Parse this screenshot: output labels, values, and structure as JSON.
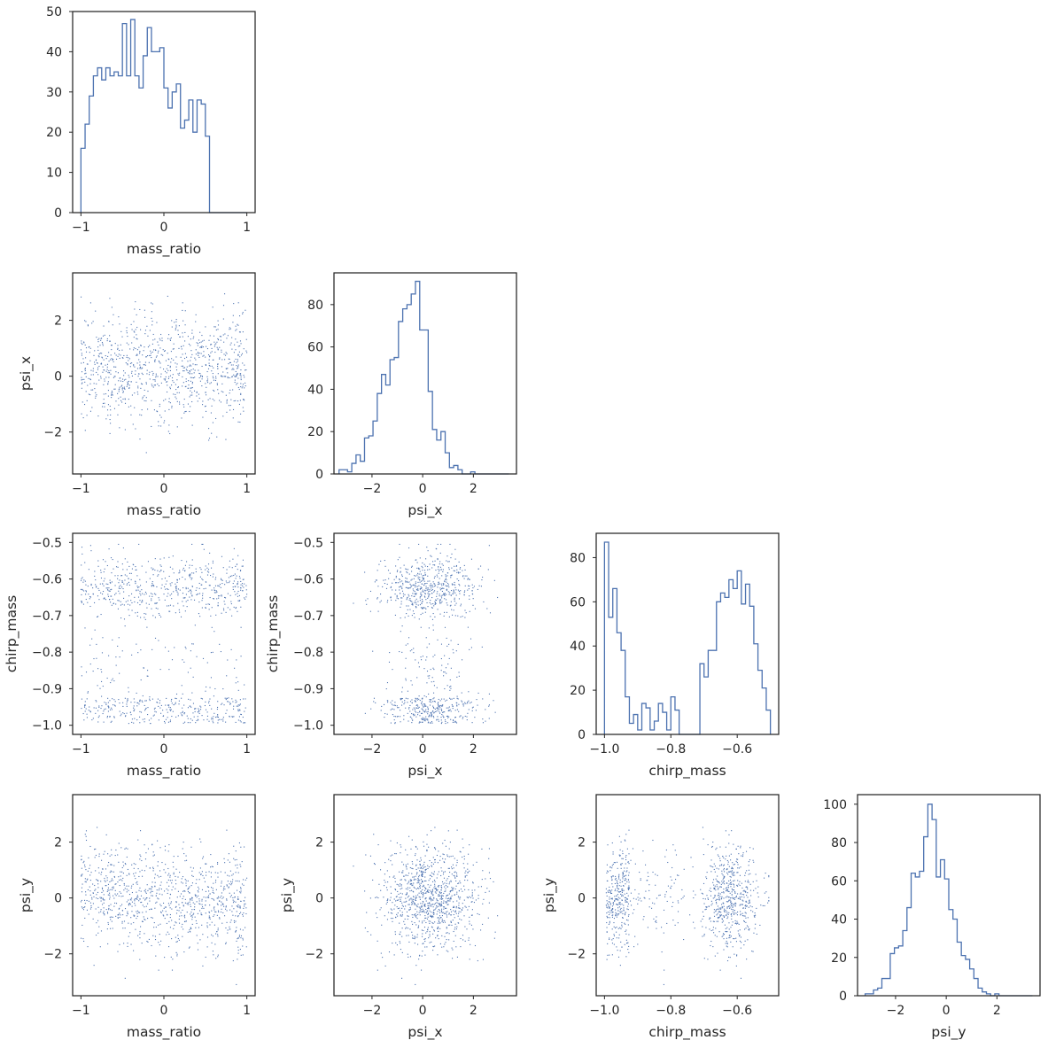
{
  "chart_data": {
    "type": "pairplot",
    "variables": [
      "mass_ratio",
      "psi_x",
      "chirp_mass",
      "psi_y"
    ],
    "color": "#4C72B0",
    "axes": {
      "mass_ratio": {
        "lim": [
          -1.1,
          1.1
        ],
        "ticks": [
          -1,
          0,
          1
        ],
        "tick_labels": [
          "−1",
          "0",
          "1"
        ]
      },
      "psi_x": {
        "lim": [
          -3.5,
          3.7
        ],
        "ticks": [
          -2,
          0,
          2
        ],
        "tick_labels": [
          "−2",
          "0",
          "2"
        ]
      },
      "chirp_mass": {
        "lim": [
          -1.025,
          -0.475
        ],
        "ticks": [
          -1.0,
          -0.9,
          -0.8,
          -0.7,
          -0.6,
          -0.5
        ],
        "tick_labels": [
          "−1.0",
          "−0.9",
          "−0.8",
          "−0.7",
          "−0.6",
          "−0.5"
        ],
        "ticks_x": [
          -1.0,
          -0.8,
          -0.6
        ],
        "tick_labels_x": [
          "−1.0",
          "−0.8",
          "−0.6"
        ]
      },
      "psi_y": {
        "lim": [
          -3.5,
          3.7
        ],
        "ticks": [
          -2,
          0,
          2
        ],
        "tick_labels": [
          "−2",
          "0",
          "2"
        ]
      }
    },
    "histograms": [
      {
        "variable": "mass_ratio",
        "bin_edges_range": [
          -1.0,
          1.0
        ],
        "bins": 40,
        "counts": [
          16,
          22,
          29,
          34,
          36,
          33,
          36,
          34,
          35,
          34,
          47,
          34,
          48,
          34,
          31,
          39,
          46,
          40,
          40,
          41,
          31,
          26,
          30,
          32,
          21,
          23,
          28,
          20,
          28,
          27,
          19,
          0,
          0,
          0,
          0,
          0,
          0,
          0,
          0,
          0
        ],
        "ylim": [
          0,
          50
        ],
        "yticks": [
          0,
          10,
          20,
          30,
          40,
          50
        ]
      },
      {
        "variable": "psi_x",
        "bin_edges_range": [
          -3.3,
          3.4
        ],
        "bins": 40,
        "counts": [
          2,
          2,
          1,
          5,
          9,
          6,
          17,
          18,
          25,
          38,
          47,
          42,
          54,
          55,
          72,
          78,
          80,
          85,
          91,
          68,
          68,
          39,
          21,
          16,
          20,
          10,
          3,
          4,
          2,
          0,
          0,
          1,
          0,
          0,
          0,
          0,
          0,
          0,
          0,
          0
        ],
        "ylim": [
          0,
          95
        ],
        "yticks": [
          0,
          20,
          40,
          60,
          80
        ]
      },
      {
        "variable": "chirp_mass",
        "bin_edges_range": [
          -1.0,
          -0.5
        ],
        "bins": 40,
        "counts": [
          87,
          53,
          66,
          46,
          38,
          17,
          5,
          9,
          2,
          14,
          12,
          2,
          6,
          14,
          10,
          2,
          17,
          11,
          0,
          0,
          0,
          0,
          0,
          32,
          26,
          38,
          38,
          60,
          64,
          62,
          70,
          66,
          74,
          59,
          68,
          58,
          41,
          29,
          21,
          11
        ],
        "ylim": [
          0,
          91
        ],
        "yticks": [
          0,
          20,
          40,
          60,
          80
        ]
      },
      {
        "variable": "psi_y",
        "bin_edges_range": [
          -3.2,
          3.4
        ],
        "bins": 40,
        "counts": [
          1,
          1,
          3,
          4,
          9,
          9,
          22,
          25,
          26,
          34,
          46,
          64,
          62,
          65,
          83,
          100,
          92,
          62,
          71,
          61,
          45,
          40,
          28,
          21,
          19,
          14,
          9,
          4,
          2,
          1,
          0,
          1,
          0,
          0,
          0,
          0,
          0,
          0,
          0,
          0
        ],
        "ylim": [
          0,
          105
        ],
        "yticks": [
          0,
          20,
          40,
          60,
          80,
          100
        ]
      }
    ],
    "scatter": {
      "n_points": 1000,
      "marker_size": 1,
      "note_pairs": [
        [
          "mass_ratio",
          "psi_x"
        ],
        [
          "mass_ratio",
          "chirp_mass"
        ],
        [
          "psi_x",
          "chirp_mass"
        ],
        [
          "mass_ratio",
          "psi_y"
        ],
        [
          "psi_x",
          "psi_y"
        ],
        [
          "chirp_mass",
          "psi_y"
        ]
      ]
    },
    "title": "",
    "legend": "none",
    "grid": false
  }
}
